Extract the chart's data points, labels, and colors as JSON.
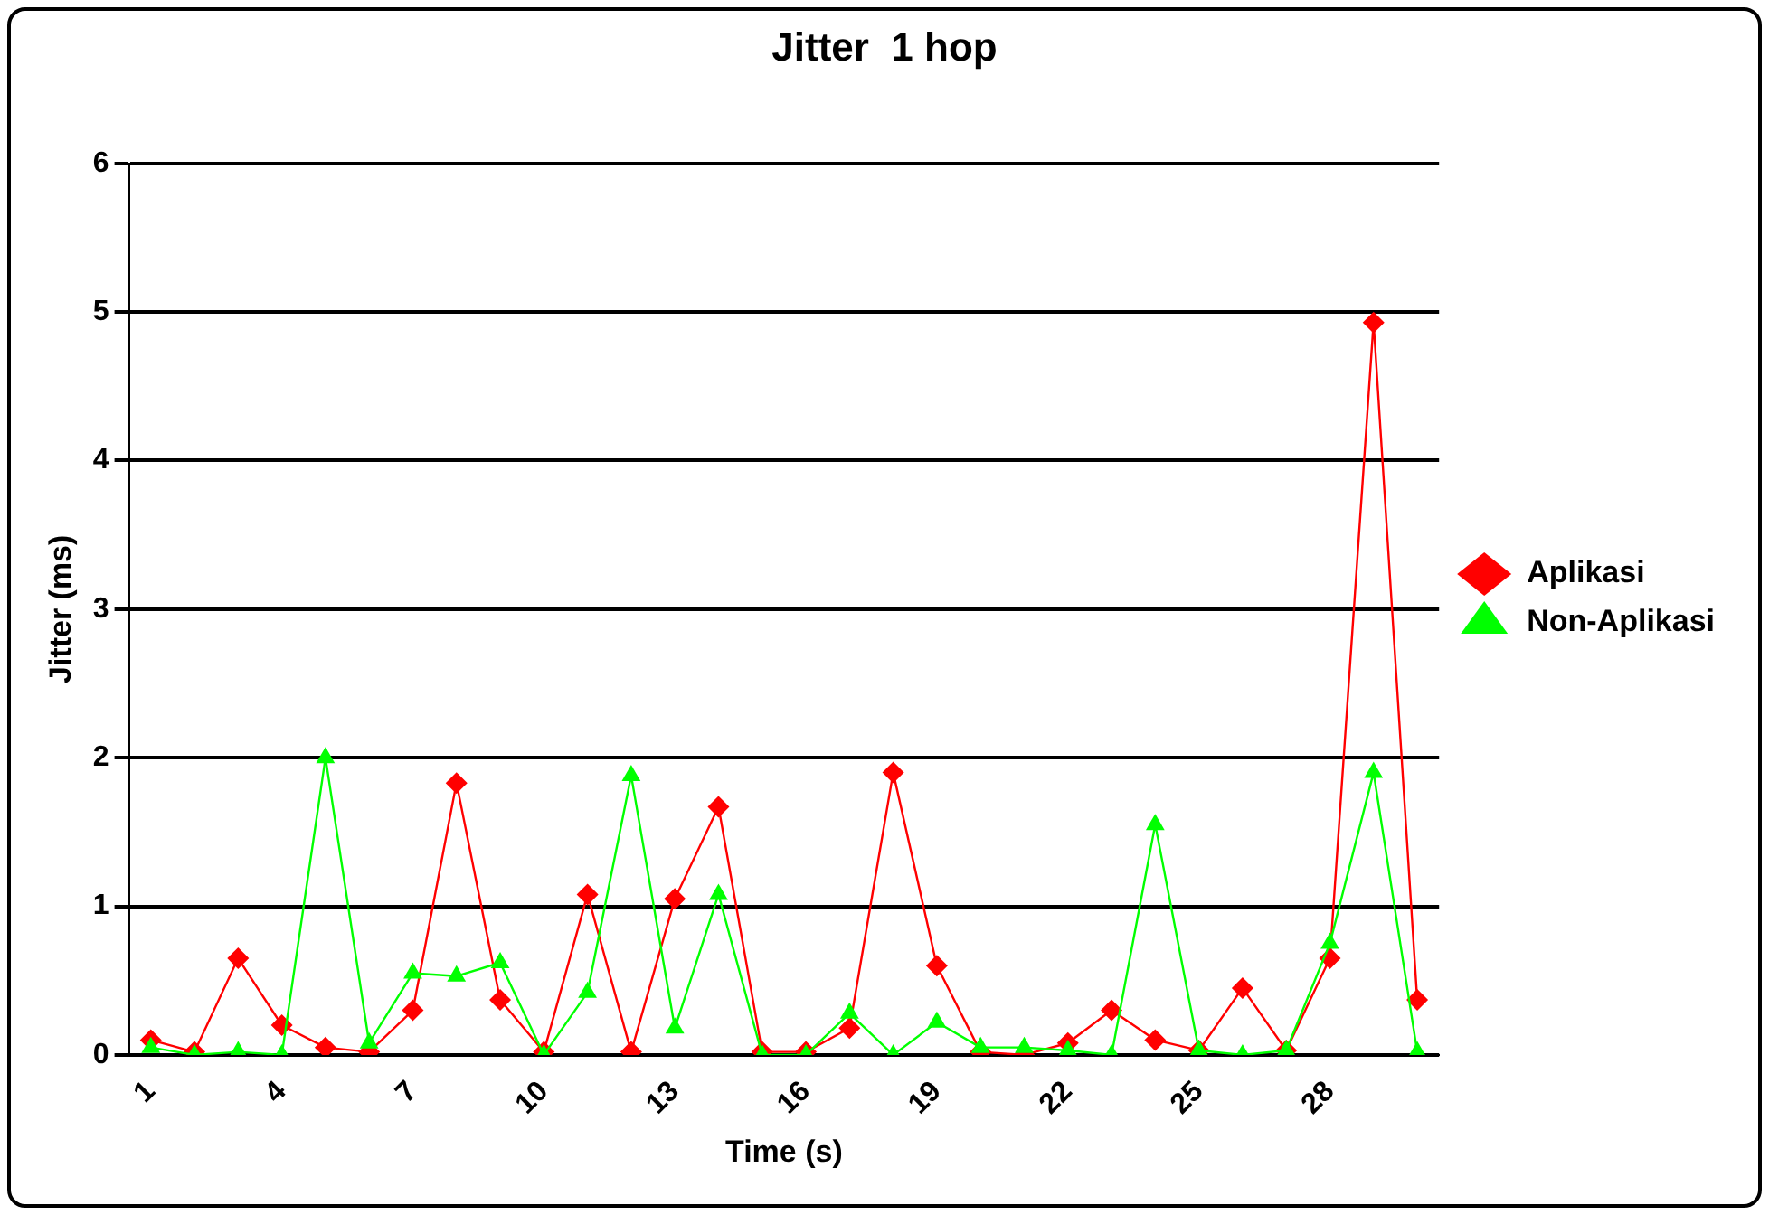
{
  "chart_data": {
    "type": "line",
    "title": "Jitter  1 hop",
    "xlabel": "Time (s)",
    "ylabel": "Jitter (ms)",
    "categories": [
      "1",
      null,
      null,
      "4",
      null,
      null,
      "7",
      null,
      null,
      "10",
      null,
      null,
      "13",
      null,
      null,
      "16",
      null,
      null,
      "19",
      null,
      null,
      "22",
      null,
      null,
      "25",
      null,
      null,
      "28",
      null,
      null
    ],
    "series": [
      {
        "name": "Aplikasi",
        "color": "#ff0000",
        "marker": "diamond",
        "values": [
          0.1,
          0.02,
          0.65,
          0.2,
          0.05,
          0.02,
          0.3,
          1.83,
          0.37,
          0.02,
          1.08,
          0.02,
          1.05,
          1.67,
          0.02,
          0.02,
          0.18,
          1.9,
          0.6,
          0.02,
          0,
          0.08,
          0.3,
          0.1,
          0.03,
          0.45,
          0.03,
          0.65,
          4.93,
          0.37
        ]
      },
      {
        "name": "Non-Aplikasi",
        "color": "#00ff00",
        "marker": "triangle",
        "values": [
          0.05,
          0,
          0.02,
          0,
          2.0,
          0.08,
          0.55,
          0.53,
          0.62,
          0,
          0.42,
          1.88,
          0.18,
          1.08,
          0,
          0,
          0.28,
          0,
          0.22,
          0.05,
          0.05,
          0.03,
          0,
          1.55,
          0.03,
          0,
          0.03,
          0.75,
          1.9,
          0.02
        ]
      }
    ],
    "ylim": [
      0,
      6
    ],
    "yticks": [
      0,
      1,
      2,
      3,
      4,
      5,
      6
    ],
    "grid": "y",
    "legend": "right",
    "line_style": "solid"
  }
}
